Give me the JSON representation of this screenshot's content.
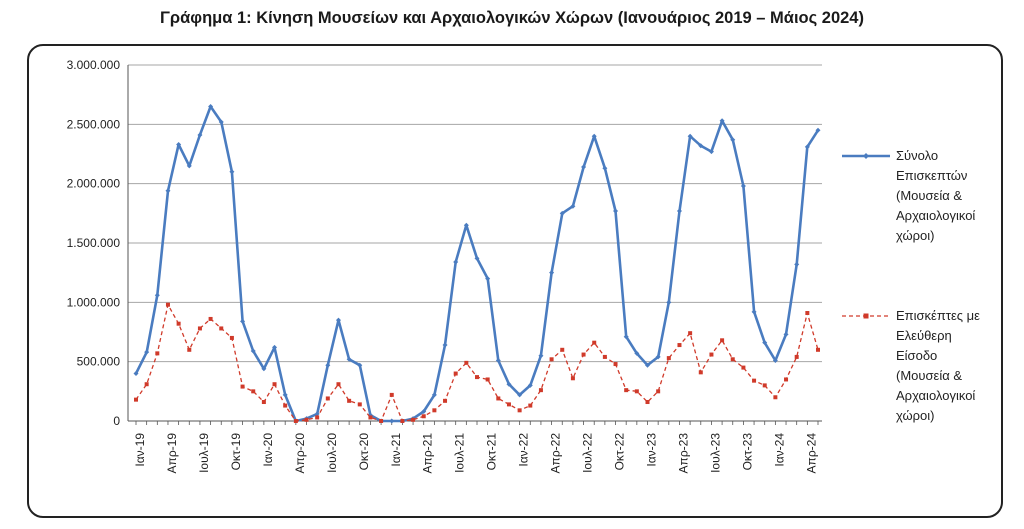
{
  "title": "Γράφημα 1: Κίνηση Μουσείων και Αρχαιολογικών Χώρων (Ιανουάριος 2019 – Μάιος 2024)",
  "colors": {
    "series1": "#4a7cc0",
    "series2": "#d03a2a",
    "grid": "#a6a6a6",
    "axis": "#555555"
  },
  "chart_data": {
    "type": "line",
    "title": "Γράφημα 1: Κίνηση Μουσείων και Αρχαιολογικών Χώρων (Ιανουάριος 2019 – Μάιος 2024)",
    "ylim": [
      0,
      3000000
    ],
    "yticks": [
      "0",
      "500.000",
      "1.000.000",
      "1.500.000",
      "2.000.000",
      "2.500.000",
      "3.000.000"
    ],
    "x_tick_labels": [
      {
        "index": 0,
        "label": "Ιαν-19"
      },
      {
        "index": 3,
        "label": "Απρ-19"
      },
      {
        "index": 6,
        "label": "Ιουλ-19"
      },
      {
        "index": 9,
        "label": "Οκτ-19"
      },
      {
        "index": 12,
        "label": "Ιαν-20"
      },
      {
        "index": 15,
        "label": "Απρ-20"
      },
      {
        "index": 18,
        "label": "Ιουλ-20"
      },
      {
        "index": 21,
        "label": "Οκτ-20"
      },
      {
        "index": 24,
        "label": "Ιαν-21"
      },
      {
        "index": 27,
        "label": "Απρ-21"
      },
      {
        "index": 30,
        "label": "Ιουλ-21"
      },
      {
        "index": 33,
        "label": "Οκτ-21"
      },
      {
        "index": 36,
        "label": "Ιαν-22"
      },
      {
        "index": 39,
        "label": "Απρ-22"
      },
      {
        "index": 42,
        "label": "Ιουλ-22"
      },
      {
        "index": 45,
        "label": "Οκτ-22"
      },
      {
        "index": 48,
        "label": "Ιαν-23"
      },
      {
        "index": 51,
        "label": "Απρ-23"
      },
      {
        "index": 54,
        "label": "Ιουλ-23"
      },
      {
        "index": 57,
        "label": "Οκτ-23"
      },
      {
        "index": 60,
        "label": "Ιαν-24"
      },
      {
        "index": 63,
        "label": "Απρ-24"
      }
    ],
    "series": [
      {
        "name": "Σύνολο Επισκεπτών (Μουσεία & Αρχαιολογικοί χώροι)",
        "legend_lines": [
          "Σύνολο",
          "Επισκεπτών",
          "(Μουσεία &",
          "Αρχαιολογικοί",
          "χώροι)"
        ],
        "style": "solid-diamond",
        "values": [
          400000,
          580000,
          1060000,
          1940000,
          2330000,
          2150000,
          2410000,
          2650000,
          2520000,
          2100000,
          840000,
          590000,
          440000,
          620000,
          220000,
          0,
          20000,
          60000,
          470000,
          850000,
          520000,
          470000,
          50000,
          0,
          0,
          0,
          20000,
          80000,
          220000,
          640000,
          1340000,
          1650000,
          1370000,
          1200000,
          510000,
          310000,
          220000,
          300000,
          550000,
          1250000,
          1750000,
          1810000,
          2140000,
          2400000,
          2130000,
          1770000,
          710000,
          570000,
          470000,
          540000,
          1000000,
          1770000,
          2400000,
          2320000,
          2270000,
          2530000,
          2370000,
          1980000,
          920000,
          660000,
          510000,
          730000,
          1320000,
          2310000,
          2450000
        ]
      },
      {
        "name": "Επισκέπτες με Ελεύθερη Είσοδο (Μουσεία & Αρχαιολογικοί χώροι)",
        "legend_lines": [
          "Επισκέπτες με",
          "Ελεύθερη",
          "Είσοδο",
          "(Μουσεία &",
          "Αρχαιολογικοί",
          "χώροι)"
        ],
        "style": "dashed-square",
        "values": [
          180000,
          310000,
          570000,
          980000,
          820000,
          600000,
          780000,
          860000,
          780000,
          700000,
          290000,
          250000,
          160000,
          310000,
          130000,
          0,
          10000,
          30000,
          190000,
          310000,
          170000,
          140000,
          30000,
          0,
          220000,
          0,
          10000,
          40000,
          90000,
          170000,
          400000,
          490000,
          370000,
          350000,
          190000,
          140000,
          90000,
          130000,
          260000,
          520000,
          600000,
          360000,
          560000,
          660000,
          540000,
          480000,
          260000,
          250000,
          160000,
          250000,
          530000,
          640000,
          740000,
          410000,
          560000,
          680000,
          520000,
          450000,
          340000,
          300000,
          200000,
          350000,
          540000,
          910000,
          600000
        ]
      }
    ],
    "grid": true,
    "legend_position": "right"
  }
}
